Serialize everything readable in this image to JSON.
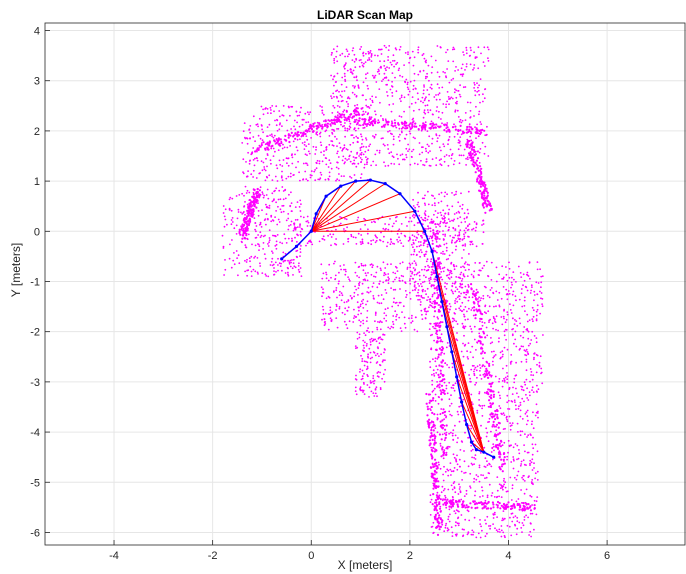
{
  "chart_data": {
    "type": "scatter",
    "title": "LiDAR Scan Map",
    "xlabel": "X [meters]",
    "ylabel": "Y [meters]",
    "xlim": [
      -5.4,
      7.6
    ],
    "ylim": [
      -6.25,
      4.15
    ],
    "xticks": [
      -4,
      -2,
      0,
      2,
      4,
      6
    ],
    "yticks": [
      -6,
      -5,
      -4,
      -3,
      -2,
      -1,
      0,
      1,
      2,
      3,
      4
    ],
    "grid": true,
    "colors": {
      "scan_points": "#ff00ff",
      "robot_poses": "#0000ff",
      "loop_closures": "#ff0000",
      "axes": "#262626",
      "grid": "#e6e6e6"
    },
    "trajectory": {
      "x": [
        -0.6,
        -0.3,
        0.0,
        0.1,
        0.3,
        0.6,
        0.9,
        1.2,
        1.5,
        1.8,
        2.1,
        2.3,
        2.45,
        2.55,
        2.65,
        2.75,
        2.85,
        2.95,
        3.05,
        3.15,
        3.25,
        3.35,
        3.5,
        3.7
      ],
      "y": [
        -0.55,
        -0.3,
        0.0,
        0.35,
        0.7,
        0.9,
        1.0,
        1.02,
        0.95,
        0.75,
        0.4,
        0.0,
        -0.4,
        -0.9,
        -1.4,
        -1.9,
        -2.4,
        -2.9,
        -3.4,
        -3.85,
        -4.2,
        -4.35,
        -4.4,
        -4.5
      ]
    },
    "scan_regions": [
      {
        "x": [
          -1.8,
          -0.2
        ],
        "y": [
          -0.9,
          0.9
        ]
      },
      {
        "x": [
          -1.4,
          1.2
        ],
        "y": [
          1.0,
          2.5
        ]
      },
      {
        "x": [
          0.4,
          3.6
        ],
        "y": [
          1.3,
          3.7
        ]
      },
      {
        "x": [
          -0.4,
          3.5
        ],
        "y": [
          -0.3,
          0.3
        ]
      },
      {
        "x": [
          0.2,
          2.6
        ],
        "y": [
          -2.0,
          -0.6
        ]
      },
      {
        "x": [
          2.0,
          3.2
        ],
        "y": [
          -1.6,
          0.8
        ]
      },
      {
        "x": [
          2.4,
          4.7
        ],
        "y": [
          -3.3,
          -0.6
        ]
      },
      {
        "x": [
          0.9,
          1.5
        ],
        "y": [
          -3.3,
          -2.0
        ]
      },
      {
        "x": [
          2.4,
          4.6
        ],
        "y": [
          -6.1,
          -3.3
        ]
      }
    ]
  }
}
